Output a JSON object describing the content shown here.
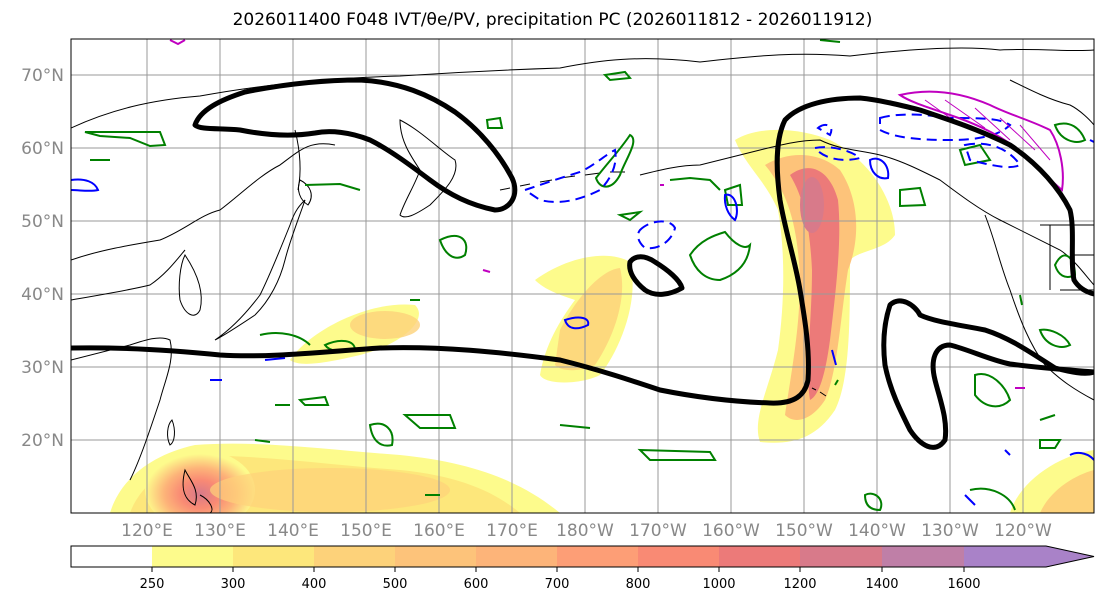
{
  "title": "2026011400 F048 IVT/θe/PV, precipitation PC (2026011812 - 2026011912)",
  "lat_labels": [
    "70°N",
    "60°N",
    "50°N",
    "40°N",
    "30°N",
    "20°N"
  ],
  "lon_labels": [
    "120°E",
    "130°E",
    "140°E",
    "150°E",
    "160°E",
    "170°E",
    "180°W",
    "170°W",
    "160°W",
    "150°W",
    "140°W",
    "130°W",
    "120°W"
  ],
  "colorbar": {
    "ticks": [
      "250",
      "300",
      "400",
      "500",
      "600",
      "700",
      "800",
      "1000",
      "1200",
      "1400",
      "1600"
    ],
    "colors": [
      "#fdfb8c",
      "#fde77b",
      "#fdd27a",
      "#fdc37a",
      "#fdb479",
      "#fd9e76",
      "#f98a74",
      "#ec7a79",
      "#d87a8a",
      "#bf7fa7",
      "#a982c8"
    ]
  },
  "colors": {
    "ivt_contour": "#000000",
    "theta_e_positive": "#008000",
    "theta_e_negative": "#0000ff",
    "pv": "#c000c0",
    "coastline": "#000000",
    "grid": "#999999"
  }
}
